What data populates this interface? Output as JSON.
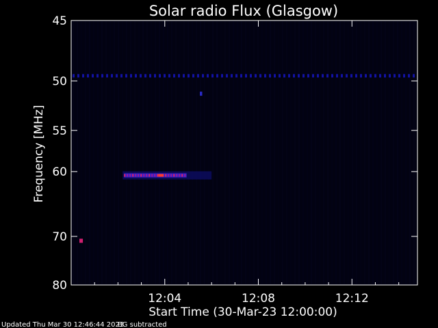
{
  "chart_data": {
    "type": "heatmap",
    "title": "Solar radio Flux (Glasgow)",
    "xlabel": "Start Time (30-Mar-23 12:00:00)",
    "ylabel": "Frequency [MHz]",
    "x_ticks": [
      "12:04",
      "12:08",
      "12:12"
    ],
    "x_tick_minutes": [
      4,
      8,
      12
    ],
    "xlim_minutes": [
      0,
      14.8
    ],
    "y_ticks": [
      45,
      50,
      55,
      60,
      70,
      80
    ],
    "ylim": [
      45,
      80
    ],
    "y_scale": "reciprocal",
    "background_color": "#000000",
    "plot_color": "#020212",
    "features": [
      {
        "name": "continuous band",
        "t_start": 0,
        "t_end": 14.8,
        "freq": 49.5,
        "intensity": 0.45
      },
      {
        "name": "burst",
        "t_start": 2.2,
        "t_end": 6.0,
        "freq": 60.5,
        "intensity": 1.0
      },
      {
        "name": "spot",
        "t_start": 0.35,
        "t_end": 0.5,
        "freq": 70.8,
        "intensity": 0.8
      },
      {
        "name": "spot",
        "t_start": 5.5,
        "t_end": 5.6,
        "freq": 51.2,
        "intensity": 0.5
      }
    ]
  },
  "footer": {
    "updated": "Updated Thu Mar 30 12:46:44 2023",
    "bg_note": "BG subtracted"
  }
}
